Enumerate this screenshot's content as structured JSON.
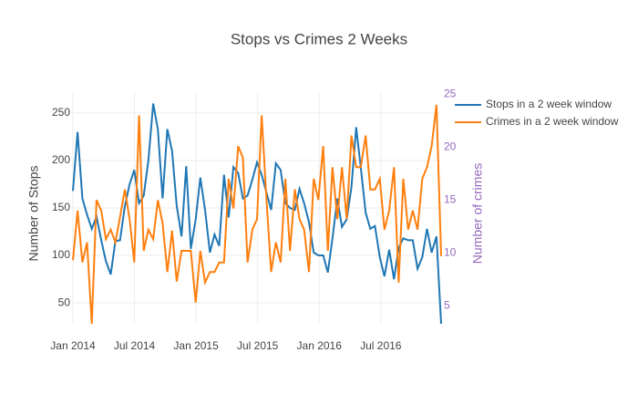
{
  "chart_data": {
    "type": "line",
    "title": "Stops vs Crimes 2 Weeks",
    "y_label": "Number of Stops",
    "y2_label": "Number of crimes",
    "x": [
      2014,
      2014.038,
      2014.077,
      2014.115,
      2014.153,
      2014.192,
      2014.23,
      2014.268,
      2014.307,
      2014.345,
      2014.383,
      2014.422,
      2014.46,
      2014.498,
      2014.537,
      2014.575,
      2014.613,
      2014.652,
      2014.69,
      2014.728,
      2014.767,
      2014.805,
      2014.843,
      2014.882,
      2014.92,
      2014.958,
      2014.997,
      2015.035,
      2015.073,
      2015.112,
      2015.15,
      2015.188,
      2015.227,
      2015.265,
      2015.303,
      2015.342,
      2015.38,
      2015.418,
      2015.457,
      2015.495,
      2015.533,
      2015.572,
      2015.61,
      2015.648,
      2015.687,
      2015.725,
      2015.763,
      2015.802,
      2015.84,
      2015.878,
      2015.917,
      2015.955,
      2015.993,
      2016.032,
      2016.07,
      2016.108,
      2016.147,
      2016.185,
      2016.223,
      2016.262,
      2016.3,
      2016.338,
      2016.377,
      2016.415,
      2016.453,
      2016.492,
      2016.53,
      2016.568,
      2016.607,
      2016.645,
      2016.683,
      2016.722,
      2016.76,
      2016.798,
      2016.837,
      2016.875,
      2016.913,
      2016.952,
      2016.99
    ],
    "series": [
      {
        "name": "Stops in a 2 week window",
        "color": "#1f77b4",
        "values": [
          168,
          230,
          160,
          143,
          128,
          141,
          116,
          94,
          80,
          115,
          116,
          152,
          175,
          190,
          155,
          163,
          200,
          260,
          233,
          160,
          233,
          210,
          152,
          120,
          194,
          107,
          138,
          182,
          148,
          103,
          122,
          110,
          185,
          140,
          193,
          187,
          160,
          163,
          180,
          198,
          185,
          166,
          148,
          197,
          190,
          155,
          150,
          148,
          170,
          155,
          135,
          103,
          100,
          100,
          82,
          118,
          160,
          130,
          138,
          172,
          235,
          192,
          145,
          128,
          131,
          98,
          78,
          106,
          75,
          108,
          118,
          116,
          116,
          86,
          98,
          128,
          103,
          120,
          28
        ]
      },
      {
        "name": "Crimes in a 2 week window",
        "color": "#ff7f0e",
        "axis": "y2",
        "values": [
          9.3,
          14,
          9.1,
          11,
          3.3,
          15,
          14,
          11.3,
          12.2,
          11,
          13.4,
          16,
          13.2,
          9.1,
          23,
          10.2,
          12.2,
          11.3,
          15,
          12.8,
          8.2,
          12.1,
          7.3,
          10.2,
          10.2,
          10.2,
          5.3,
          10.2,
          7.2,
          8.2,
          8.2,
          9.1,
          9.1,
          17,
          14.2,
          20.1,
          19,
          9.1,
          12.2,
          13.2,
          23,
          15,
          8.2,
          11,
          9.1,
          17,
          10.2,
          16,
          13.2,
          12.2,
          8.2,
          17,
          15,
          20.1,
          10.2,
          18.1,
          13.2,
          18.1,
          13.2,
          21.1,
          18.1,
          18.1,
          21.1,
          16,
          16,
          17,
          12.2,
          14,
          18.1,
          7.2,
          17,
          12.2,
          14,
          12.2,
          17,
          18.1,
          20.1,
          24,
          9.7
        ]
      }
    ],
    "xlim": [
      2014,
      2016.99
    ],
    "xticks": [
      {
        "value": 2014,
        "label": "Jan 2014"
      },
      {
        "value": 2014.5,
        "label": "Jul 2014"
      },
      {
        "value": 2015,
        "label": "Jan 2015"
      },
      {
        "value": 2015.5,
        "label": "Jul 2015"
      },
      {
        "value": 2016,
        "label": "Jan 2016"
      },
      {
        "value": 2016.5,
        "label": "Jul 2016"
      }
    ],
    "ylim": [
      28,
      272
    ],
    "yticks": [
      50,
      100,
      150,
      200,
      250
    ],
    "y2lim": [
      3.3,
      25.2
    ],
    "y2ticks": [
      5,
      10,
      15,
      20,
      25
    ],
    "y2_color": "#9467bd",
    "grid": true
  }
}
